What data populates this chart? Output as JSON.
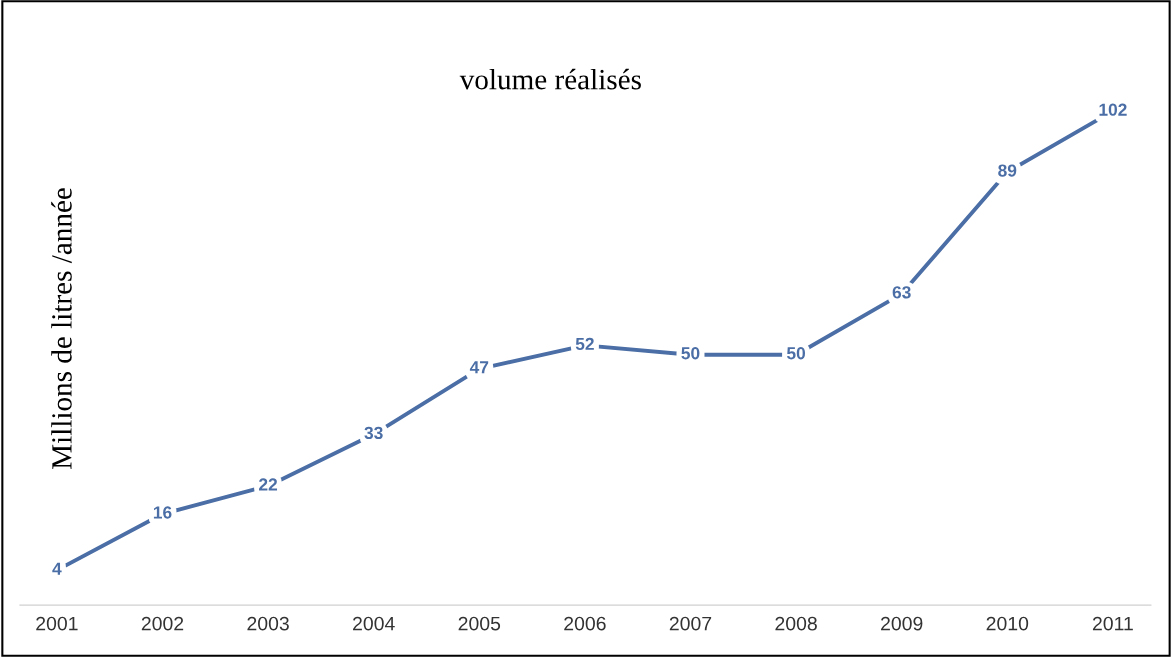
{
  "chart_data": {
    "type": "line",
    "title": "volume réalisés",
    "ylabel": "Millions de litres /année",
    "categories": [
      "2001",
      "2002",
      "2003",
      "2004",
      "2005",
      "2006",
      "2007",
      "2008",
      "2009",
      "2010",
      "2011"
    ],
    "series": [
      {
        "color": "#4a6ea5",
        "values": [
          4,
          16,
          22,
          33,
          47,
          52,
          50,
          50,
          63,
          89,
          102
        ]
      }
    ],
    "data_labels": true,
    "tick_labels": "x",
    "grid": false,
    "legend": false,
    "marker": "none",
    "line_style": "solid"
  }
}
